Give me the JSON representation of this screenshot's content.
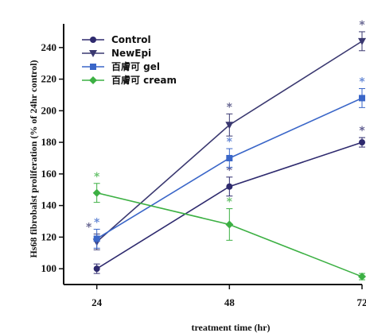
{
  "chart_data": {
    "type": "line",
    "xlabel": "treatment time (hr)",
    "ylabel": "Hs68 fibrobalst proliferation (% of 24hr control)",
    "x": [
      24,
      48,
      72
    ],
    "x_tick_labels": [
      "24",
      "48",
      "72"
    ],
    "xlim": [
      18,
      72
    ],
    "ylim": [
      90,
      255
    ],
    "y_ticks": [
      100,
      120,
      140,
      160,
      180,
      200,
      220,
      240
    ],
    "y_tick_labels": [
      "100",
      "120",
      "140",
      "160",
      "180",
      "200",
      "220",
      "240"
    ],
    "grid": false,
    "legend": "top-left",
    "significance_marker": "*",
    "series": [
      {
        "name": "Control",
        "color": "#2e2a6e",
        "marker": "circle",
        "values": [
          100,
          152,
          180
        ],
        "errors": [
          3,
          6,
          3
        ],
        "significant": [
          false,
          true,
          true
        ]
      },
      {
        "name": "NewEpi",
        "color": "#3a3870",
        "marker": "triangle-down",
        "values": [
          117,
          191,
          244
        ],
        "errors": [
          5,
          7,
          6
        ],
        "significant": [
          true,
          true,
          true
        ]
      },
      {
        "name": "百膚可 gel",
        "color": "#3a66c8",
        "marker": "square",
        "values": [
          119,
          170,
          208
        ],
        "errors": [
          6,
          6,
          6
        ],
        "significant": [
          true,
          true,
          true
        ]
      },
      {
        "name": "百膚可 cream",
        "color": "#3cb043",
        "marker": "diamond",
        "values": [
          148,
          128,
          95
        ],
        "errors": [
          6,
          10,
          2
        ],
        "significant": [
          true,
          true,
          false
        ]
      }
    ]
  }
}
